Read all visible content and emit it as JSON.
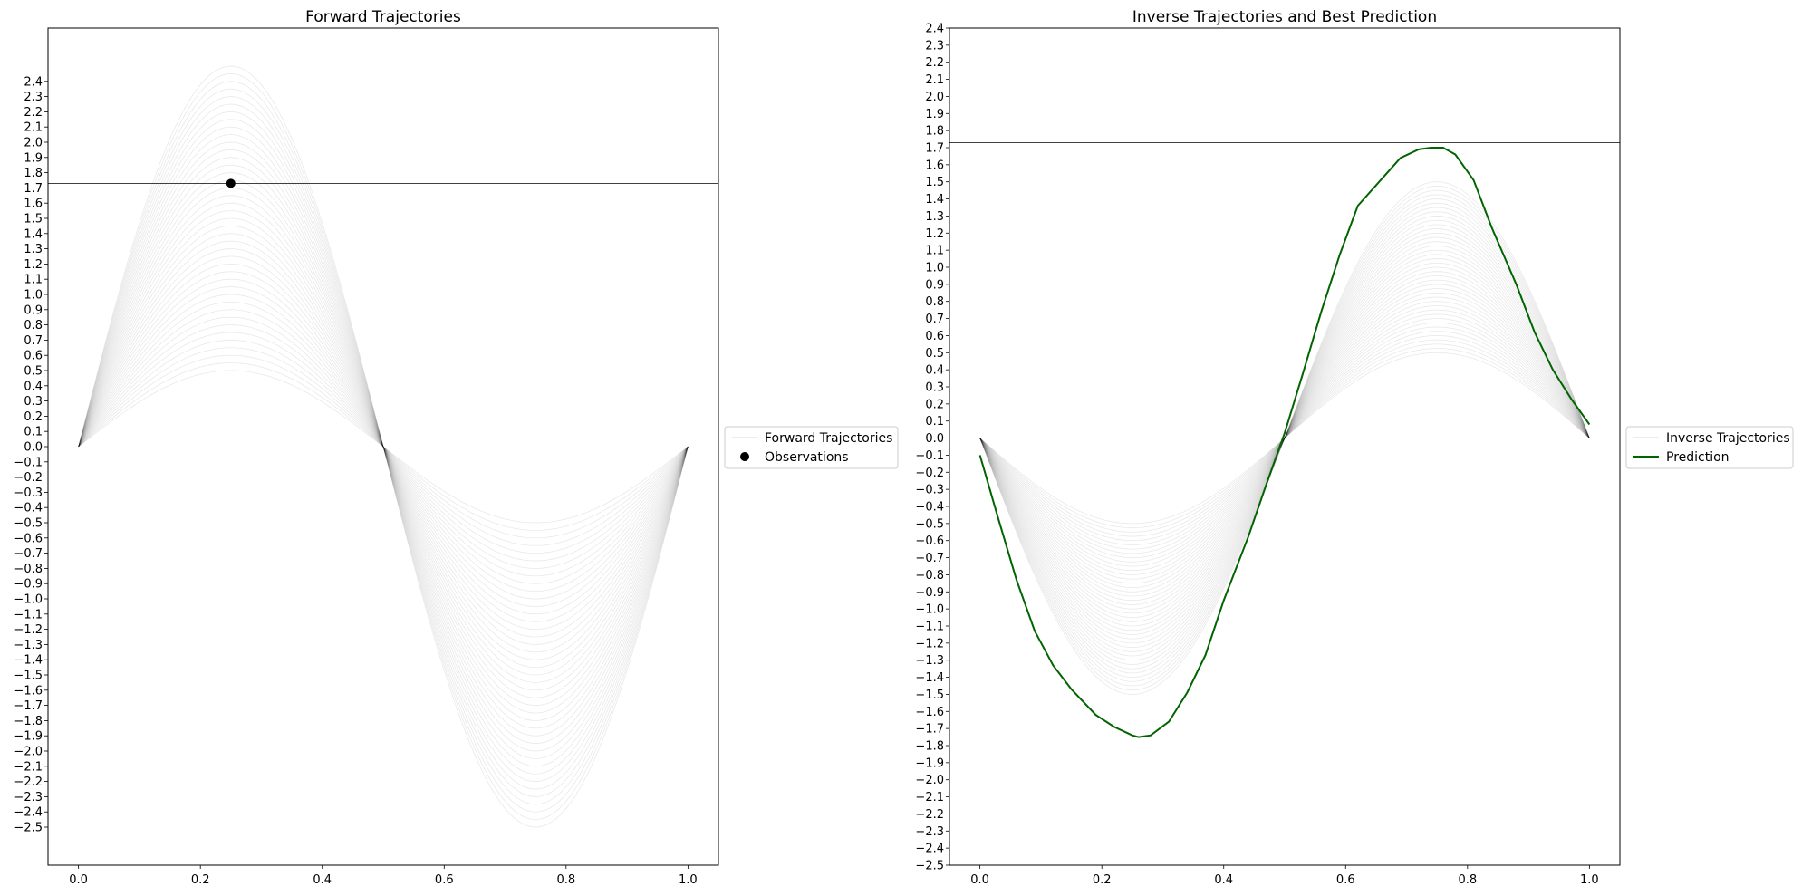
{
  "chart_data": [
    {
      "type": "line",
      "title": "Forward Trajectories",
      "xlabel": "",
      "ylabel": "",
      "xlim": [
        -0.05,
        1.05
      ],
      "ylim": [
        -2.75,
        2.75
      ],
      "x_ticks": [
        0.0,
        0.2,
        0.4,
        0.6,
        0.8,
        1.0
      ],
      "x_tick_labels": [
        "0.0",
        "0.2",
        "0.4",
        "0.6",
        "0.8",
        "1.0"
      ],
      "y_tick_range": [
        -2.5,
        2.4
      ],
      "y_tick_step": 0.1,
      "trajectories": {
        "function": "y = A * sin(2*pi*x)",
        "amplitude_range": [
          0.5,
          2.5
        ],
        "count": 41,
        "x_range": [
          0,
          1
        ],
        "color": "#000000"
      },
      "hline": {
        "y": 1.73,
        "color": "#000000"
      },
      "observations": [
        {
          "x": 0.25,
          "y": 1.73
        }
      ],
      "legend": {
        "placement": "right",
        "entries": [
          "Forward Trajectories",
          "Observations"
        ]
      }
    },
    {
      "type": "line",
      "title": "Inverse Trajectories and Best Prediction",
      "xlabel": "",
      "ylabel": "",
      "xlim": [
        -0.05,
        1.05
      ],
      "ylim": [
        -2.5,
        2.4
      ],
      "x_ticks": [
        0.0,
        0.2,
        0.4,
        0.6,
        0.8,
        1.0
      ],
      "x_tick_labels": [
        "0.0",
        "0.2",
        "0.4",
        "0.6",
        "0.8",
        "1.0"
      ],
      "y_tick_range": [
        -2.5,
        2.4
      ],
      "y_tick_step": 0.1,
      "trajectories": {
        "function": "y = -A * sin(2*pi*x)",
        "amplitude_range": [
          0.5,
          1.5
        ],
        "count": 41,
        "x_range": [
          0,
          1
        ],
        "color": "#000000"
      },
      "hline": {
        "y": 1.73,
        "color": "#000000"
      },
      "prediction": {
        "name": "Prediction",
        "color": "#006400",
        "x": [
          0.0,
          0.03,
          0.06,
          0.09,
          0.12,
          0.15,
          0.19,
          0.22,
          0.25,
          0.26,
          0.28,
          0.31,
          0.34,
          0.37,
          0.4,
          0.44,
          0.47,
          0.5,
          0.53,
          0.56,
          0.59,
          0.62,
          0.66,
          0.69,
          0.72,
          0.74,
          0.76,
          0.78,
          0.81,
          0.84,
          0.88,
          0.91,
          0.94,
          0.97,
          1.0
        ],
        "y": [
          -0.1,
          -0.47,
          -0.83,
          -1.13,
          -1.33,
          -1.47,
          -1.62,
          -1.69,
          -1.74,
          -1.75,
          -1.74,
          -1.66,
          -1.49,
          -1.27,
          -0.95,
          -0.58,
          -0.27,
          0.03,
          0.38,
          0.74,
          1.07,
          1.36,
          1.52,
          1.64,
          1.69,
          1.7,
          1.7,
          1.66,
          1.51,
          1.23,
          0.9,
          0.62,
          0.4,
          0.23,
          0.08
        ]
      },
      "legend": {
        "placement": "right",
        "entries": [
          "Inverse Trajectories",
          "Prediction"
        ]
      }
    }
  ]
}
